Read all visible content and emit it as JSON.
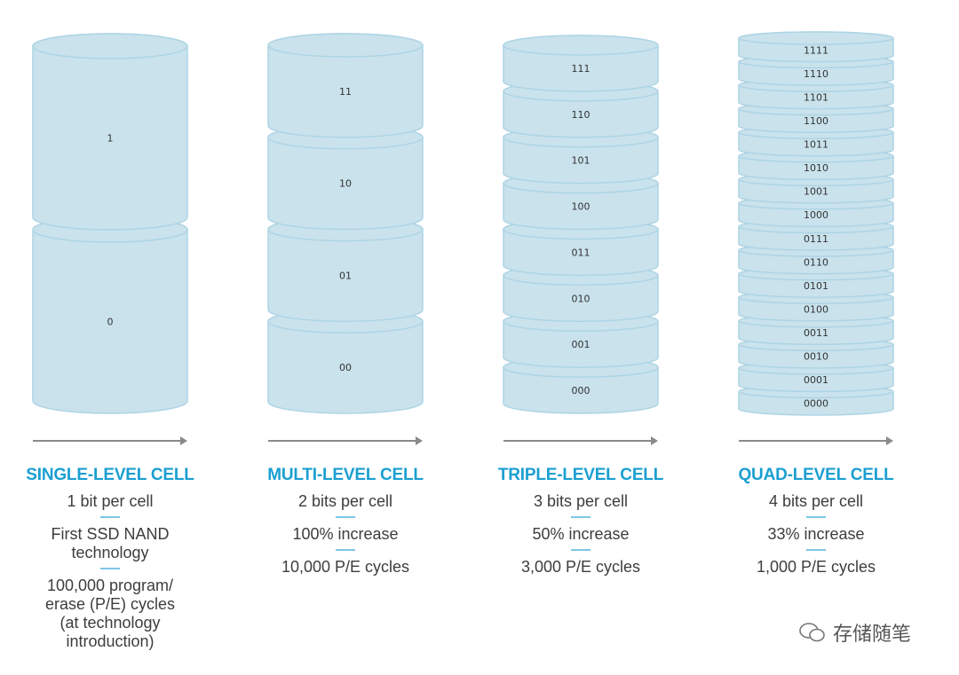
{
  "colors": {
    "fill": "#c9e2ec",
    "stroke": "#aed4e5",
    "title": "#1b9fd1",
    "arrow": "#8a8a8a",
    "text": "#3d3d3d"
  },
  "columns": [
    {
      "title": "SINGLE-LEVEL CELL",
      "states": [
        "1",
        "0"
      ],
      "details": [
        [
          "1 bit per cell"
        ],
        [
          "First SSD NAND",
          "technology"
        ],
        [
          "100,000 program/",
          "erase (P/E) cycles",
          "(at technology",
          "introduction)"
        ]
      ]
    },
    {
      "title": "MULTI-LEVEL CELL",
      "states": [
        "11",
        "10",
        "01",
        "00"
      ],
      "details": [
        [
          "2 bits per cell"
        ],
        [
          "100% increase"
        ],
        [
          "10,000 P/E cycles"
        ]
      ]
    },
    {
      "title": "TRIPLE-LEVEL CELL",
      "states": [
        "111",
        "110",
        "101",
        "100",
        "011",
        "010",
        "001",
        "000"
      ],
      "details": [
        [
          "3 bits per cell"
        ],
        [
          "50% increase"
        ],
        [
          "3,000 P/E cycles"
        ]
      ]
    },
    {
      "title": "QUAD-LEVEL CELL",
      "states": [
        "1111",
        "1110",
        "1101",
        "1100",
        "1011",
        "1010",
        "1001",
        "1000",
        "0111",
        "0110",
        "0101",
        "0100",
        "0011",
        "0010",
        "0001",
        "0000"
      ],
      "details": [
        [
          "4 bits per cell"
        ],
        [
          "33% increase"
        ],
        [
          "1,000 P/E cycles"
        ]
      ]
    }
  ],
  "watermark": {
    "icon": "wechat-icon",
    "text": "存储随笔"
  }
}
